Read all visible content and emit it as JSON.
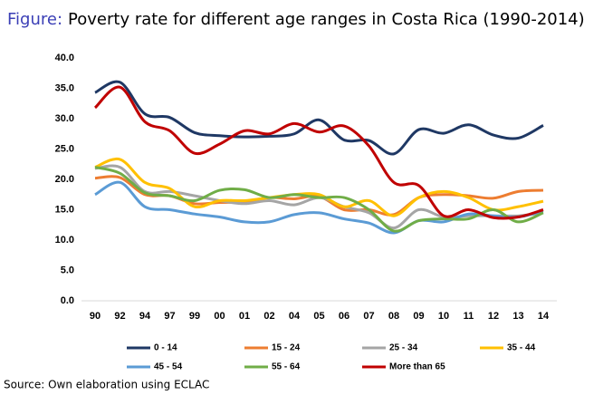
{
  "chart_data": {
    "type": "line",
    "figure_label": "Figure:",
    "title": "Poverty rate for different age ranges in Costa Rica (1990-2014)",
    "source": "Source: Own elaboration using ECLAC",
    "categories": [
      "90",
      "92",
      "94",
      "97",
      "99",
      "00",
      "01",
      "02",
      "04",
      "05",
      "06",
      "07",
      "08",
      "09",
      "10",
      "11",
      "12",
      "13",
      "14"
    ],
    "ylim": [
      0,
      40
    ],
    "yticks": [
      {
        "value": 0,
        "label": "0.0"
      },
      {
        "value": 5,
        "label": "5.0"
      },
      {
        "value": 10,
        "label": "10.0"
      },
      {
        "value": 15,
        "label": "15.0"
      },
      {
        "value": 20,
        "label": "20.0"
      },
      {
        "value": 25,
        "label": "25.0"
      },
      {
        "value": 30,
        "label": "30.0"
      },
      {
        "value": 35,
        "label": "35.0"
      },
      {
        "value": 40,
        "label": "40.0"
      }
    ],
    "series": [
      {
        "name": "0 - 14",
        "color": "#1f3864",
        "values": [
          34.3,
          36.0,
          30.8,
          30.2,
          27.7,
          27.2,
          27.0,
          27.1,
          27.5,
          29.8,
          26.5,
          26.4,
          24.2,
          28.2,
          27.6,
          29.0,
          27.3,
          26.8,
          28.9
        ]
      },
      {
        "name": "15 - 24",
        "color": "#ed7d31",
        "values": [
          20.2,
          20.3,
          17.5,
          17.3,
          16.0,
          16.2,
          16.3,
          17.0,
          16.8,
          17.2,
          15.0,
          15.0,
          14.2,
          17.0,
          17.5,
          17.3,
          16.9,
          18.0,
          18.2
        ]
      },
      {
        "name": "25 - 34",
        "color": "#a5a5a5",
        "values": [
          21.8,
          22.0,
          18.0,
          18.0,
          17.3,
          16.5,
          16.0,
          16.5,
          15.8,
          17.0,
          15.5,
          14.5,
          12.0,
          15.0,
          13.8,
          14.0,
          14.0,
          14.0,
          14.5
        ]
      },
      {
        "name": "35 - 44",
        "color": "#ffc000",
        "values": [
          22.0,
          23.3,
          19.5,
          18.5,
          15.5,
          16.5,
          16.5,
          17.0,
          17.5,
          17.5,
          15.5,
          16.5,
          14.0,
          17.0,
          18.0,
          17.0,
          15.0,
          15.5,
          16.4
        ]
      },
      {
        "name": "45 - 54",
        "color": "#5b9bd5",
        "values": [
          17.5,
          19.5,
          15.5,
          15.0,
          14.3,
          13.8,
          13.0,
          13.0,
          14.2,
          14.5,
          13.5,
          12.8,
          11.2,
          13.2,
          13.0,
          14.3,
          14.0,
          13.8,
          14.8
        ]
      },
      {
        "name": "55 - 64",
        "color": "#70ad47",
        "values": [
          22.0,
          21.0,
          17.8,
          17.3,
          16.5,
          18.2,
          18.3,
          17.0,
          17.5,
          17.0,
          17.0,
          15.0,
          11.5,
          13.2,
          13.5,
          13.5,
          15.0,
          13.0,
          14.5
        ]
      },
      {
        "name": "More than 65",
        "color": "#c00000",
        "values": [
          31.8,
          35.2,
          29.5,
          28.0,
          24.3,
          25.8,
          28.0,
          27.5,
          29.2,
          27.8,
          28.8,
          25.5,
          19.5,
          19.0,
          14.0,
          15.0,
          13.7,
          13.8,
          15.0
        ]
      }
    ]
  }
}
